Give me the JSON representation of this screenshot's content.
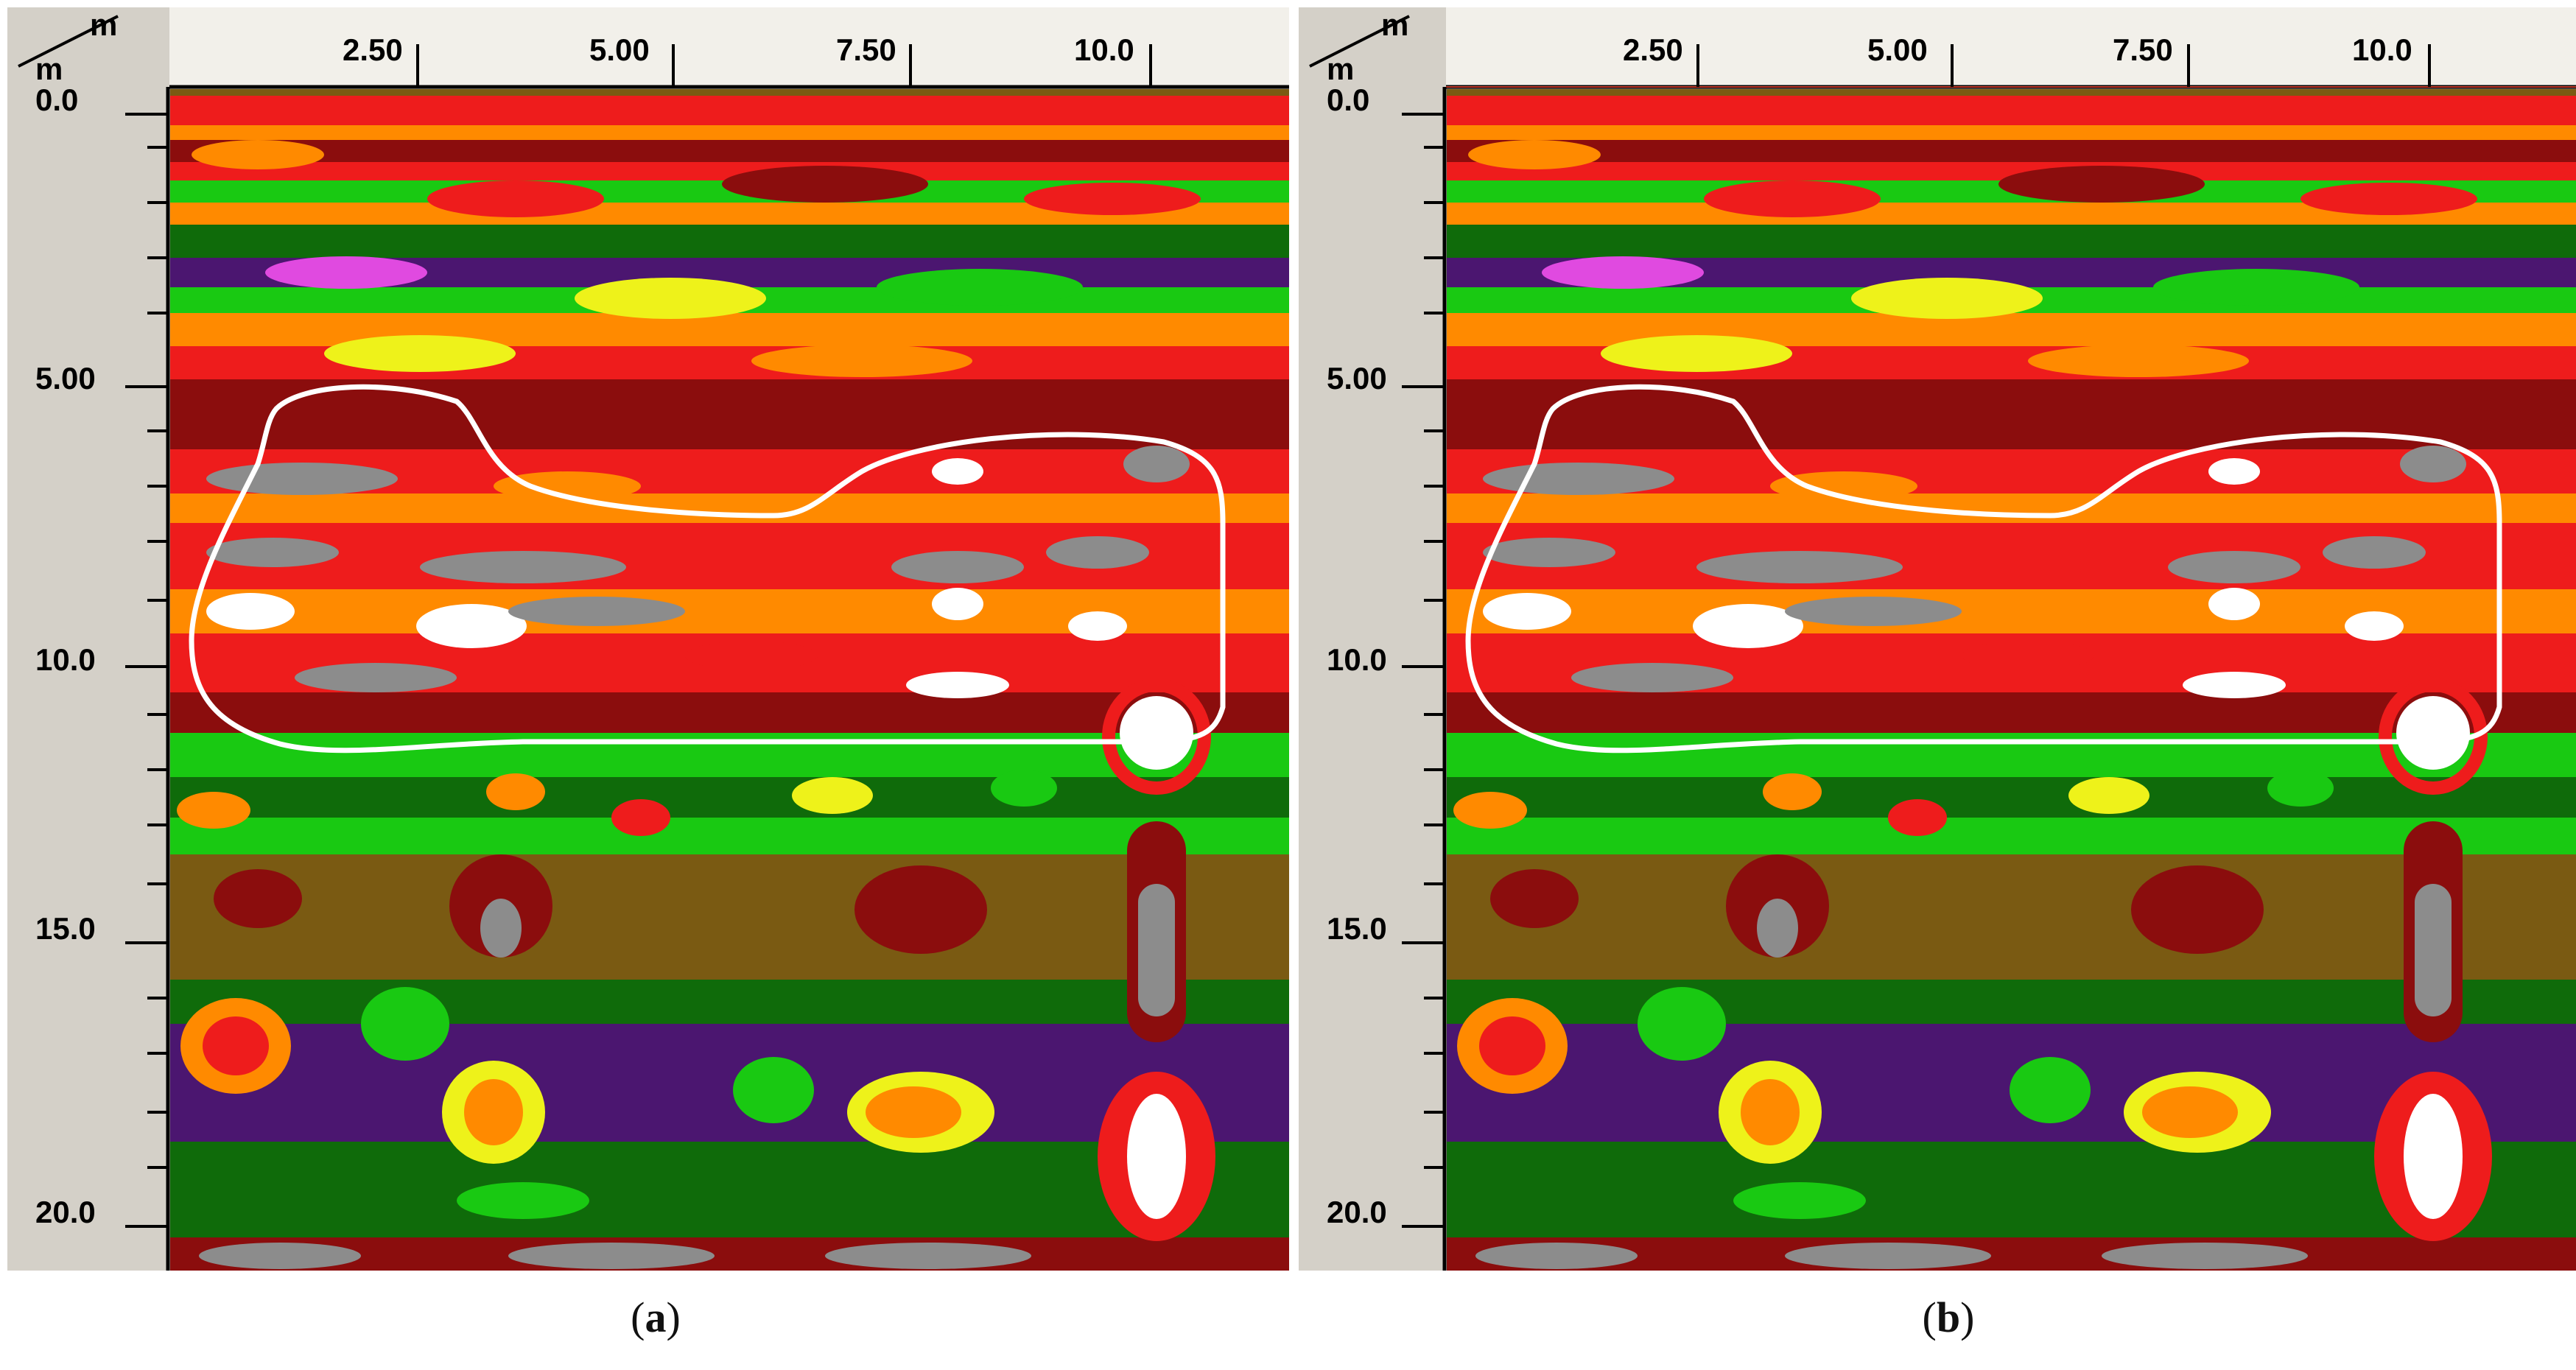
{
  "panels": [
    {
      "id": "a",
      "caption_letter": "a",
      "axis_unit_top": "m",
      "axis_unit_left": "m",
      "x_tick_labels": [
        "2.50",
        "5.00",
        "7.50",
        "10.0"
      ],
      "y_tick_labels": [
        "0.0",
        "5.00",
        "10.0",
        "15.0",
        "20.0"
      ]
    },
    {
      "id": "b",
      "caption_letter": "b",
      "axis_unit_top": "m",
      "axis_unit_left": "m",
      "x_tick_labels": [
        "2.50",
        "5.00",
        "7.50",
        "10.0"
      ],
      "y_tick_labels": [
        "0.0",
        "5.00",
        "10.0",
        "15.0",
        "20.0"
      ]
    }
  ],
  "colors": {
    "frame": "#d4d0c8",
    "background_olive": "#7a5a12",
    "deep_green": "#0f6b0a",
    "green": "#19c912",
    "yellow": "#eef21a",
    "orange": "#ff8a00",
    "red": "#ee1c1c",
    "dark_red": "#8b0d0d",
    "gray": "#8c8c8c",
    "white": "#ffffff",
    "purple": "#4b1670",
    "magenta": "#e04ae0",
    "outline": "#ffffff"
  }
}
